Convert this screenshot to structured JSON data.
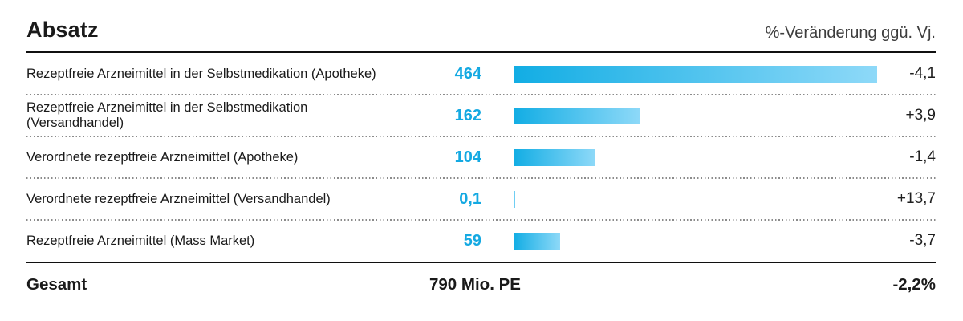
{
  "header": {
    "title": "Absatz",
    "right_label": "%-Veränderung ggü. Vj."
  },
  "chart_data": {
    "type": "bar",
    "orientation": "horizontal",
    "title": "Absatz",
    "xlabel": "",
    "ylabel": "",
    "unit": "Mio. PE",
    "xlim": [
      0,
      465
    ],
    "grid": false,
    "legend": "none",
    "right_axis_label": "%-Veränderung ggü. Vj.",
    "categories": [
      "Rezeptfreie Arzneimittel in der Selbstmedikation (Apotheke)",
      "Rezeptfreie Arzneimittel in der Selbstmedikation (Versandhandel)",
      "Verordnete rezeptfreie Arzneimittel (Apotheke)",
      "Verordnete rezeptfreie Arzneimittel (Versandhandel)",
      "Rezeptfreie Arzneimittel (Mass Market)"
    ],
    "values": [
      464,
      162,
      104,
      0.1,
      59
    ],
    "change_pct_vs_prev_year": [
      -4.1,
      3.9,
      -1.4,
      13.7,
      -3.7
    ],
    "total": {
      "label": "Gesamt",
      "value": 790,
      "value_label": "790 Mio. PE",
      "change_pct": -2.2
    }
  },
  "rows": [
    {
      "label": "Rezeptfreie Arzneimittel in der Selbstmedikation (Apotheke)",
      "value": "464",
      "change": "-4,1"
    },
    {
      "label": "Rezeptfreie Arzneimittel in der Selbstmedikation (Versandhandel)",
      "value": "162",
      "change": "+3,9"
    },
    {
      "label": "Verordnete rezeptfreie Arzneimittel (Apotheke)",
      "value": "104",
      "change": "-1,4"
    },
    {
      "label": "Verordnete rezeptfreie Arzneimittel (Versandhandel)",
      "value": "0,1",
      "change": "+13,7"
    },
    {
      "label": "Rezeptfreie Arzneimittel (Mass Market)",
      "value": "59",
      "change": "-3,7"
    }
  ],
  "footer": {
    "label": "Gesamt",
    "total": "790 Mio. PE",
    "change": "-2,2%"
  },
  "colors": {
    "accent": "#14a9e2",
    "bar_gradient_start": "#12ade4",
    "bar_gradient_end": "#8ed9f8",
    "rule": "#101010",
    "muted_text": "#3d3d3d",
    "dotted_separator": "#8b8b8b"
  }
}
